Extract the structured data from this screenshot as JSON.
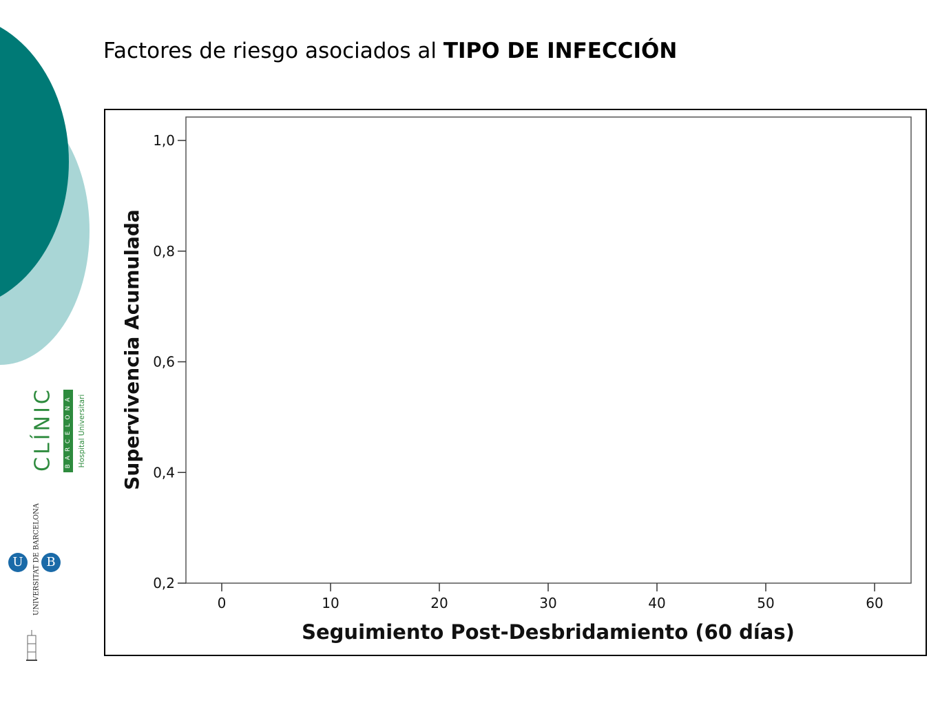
{
  "slide": {
    "title_prefix": "Factores de riesgo asociados al ",
    "title_bold": "TIPO DE INFECCIÓN"
  },
  "logos": {
    "clinic_word": "CLÍNIC",
    "clinic_city": "BARCELONA",
    "clinic_sub": "Hospital Universitari",
    "ub_text": "UNIVERSITAT DE BARCELONA",
    "ub_letters": [
      "U",
      "B"
    ]
  },
  "colors": {
    "deco_dark": "#007a76",
    "deco_light": "#a9d6d6",
    "clinic_green": "#2e8b3e",
    "ub_blue": "#1a6aa8"
  },
  "chart_data": {
    "type": "line",
    "title": "",
    "xlabel": "Seguimiento Post-Desbridamiento (60 días)",
    "ylabel": "Supervivencia Acumulada",
    "xlim": [
      0,
      60
    ],
    "ylim": [
      0.2,
      1.0
    ],
    "x_ticks": [
      "0",
      "10",
      "20",
      "30",
      "40",
      "50",
      "60"
    ],
    "x_tick_values": [
      0,
      10,
      20,
      30,
      40,
      50,
      60
    ],
    "y_ticks": [
      "0,2",
      "0,4",
      "0,6",
      "0,8",
      "1,0"
    ],
    "y_tick_values": [
      0.2,
      0.4,
      0.6,
      0.8,
      1.0
    ],
    "series": [],
    "grid": false
  }
}
